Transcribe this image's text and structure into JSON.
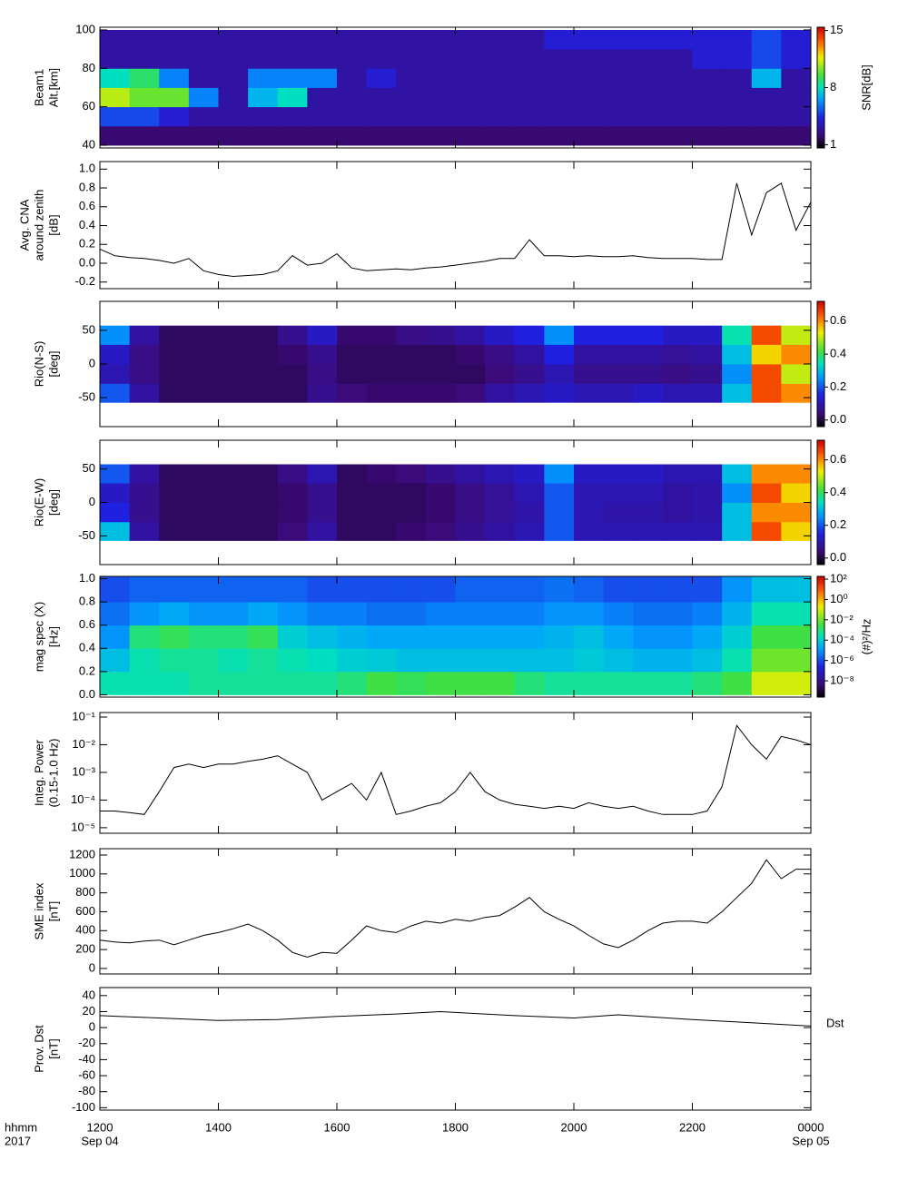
{
  "x_axis": {
    "xlim": [
      12,
      24
    ],
    "xticks": [
      {
        "value": 12,
        "label": "1200"
      },
      {
        "value": 14,
        "label": "1400"
      },
      {
        "value": 16,
        "label": "1600"
      },
      {
        "value": 18,
        "label": "1800"
      },
      {
        "value": 20,
        "label": "2000"
      },
      {
        "value": 22,
        "label": "2200"
      },
      {
        "value": 24,
        "label": "0000"
      }
    ],
    "label_lines": [
      "hhmm",
      "2017"
    ],
    "start_date": "Sep 04",
    "end_date": "Sep 05"
  },
  "chart_data": [
    {
      "type": "heatmap",
      "ylabel": [
        "Beam1",
        "Alt.[km]"
      ],
      "ylim": [
        38.6,
        101.4
      ],
      "yticks": [
        40,
        60,
        80,
        100
      ],
      "x_bins": [
        12,
        12.5,
        13,
        13.5,
        14,
        14.5,
        15,
        15.5,
        16,
        16.5,
        17,
        17.5,
        18,
        18.5,
        19,
        19.5,
        20,
        20.5,
        21,
        21.5,
        22,
        22.5,
        23,
        23.5,
        24
      ],
      "y_bins": [
        40,
        50,
        60,
        70,
        80,
        90,
        100
      ],
      "z": [
        [
          2,
          2,
          2,
          2,
          2,
          2,
          2,
          2,
          2,
          2,
          2,
          2,
          2,
          2,
          2,
          2,
          2,
          2,
          2,
          2,
          2,
          2,
          2,
          2
        ],
        [
          5,
          5,
          4,
          3,
          3,
          3,
          3,
          3,
          3,
          3,
          3,
          3,
          3,
          3,
          3,
          3,
          3,
          3,
          3,
          3,
          3,
          3,
          3,
          3
        ],
        [
          11,
          10,
          10,
          6,
          3,
          7,
          8,
          3,
          3,
          3,
          3,
          3,
          3,
          3,
          3,
          3,
          3,
          3,
          3,
          3,
          3,
          3,
          3,
          3
        ],
        [
          8,
          9,
          6,
          3,
          3,
          6,
          6,
          6,
          3,
          4,
          3,
          3,
          3,
          3,
          3,
          3,
          3,
          3,
          3,
          3,
          3,
          3,
          7,
          3
        ],
        [
          3,
          3,
          3,
          3,
          3,
          3,
          3,
          3,
          3,
          3,
          3,
          3,
          3,
          3,
          3,
          3,
          3,
          3,
          3,
          3,
          4,
          4,
          5,
          4
        ],
        [
          3,
          3,
          3,
          3,
          3,
          3,
          3,
          3,
          3,
          3,
          3,
          3,
          3,
          3,
          3,
          4,
          4,
          4,
          4,
          4,
          4,
          4,
          5,
          4
        ]
      ],
      "zlim": [
        0.6,
        15.4
      ],
      "zticks": [
        1,
        8,
        15
      ],
      "zlabel": "SNR[dB]"
    },
    {
      "type": "line",
      "ylabel": [
        "Avg. CNA",
        "around zenith",
        "[dB]"
      ],
      "ylim": [
        -0.27,
        1.08
      ],
      "yticks": [
        {
          "value": 1.0,
          "label": "1.0"
        },
        0.8,
        0.6,
        0.4,
        0.2,
        {
          "value": 0,
          "label": "0.0"
        },
        -0.2
      ],
      "color": "#000000",
      "x": [
        12,
        12.25,
        12.5,
        12.75,
        13,
        13.25,
        13.5,
        13.75,
        14,
        14.25,
        14.5,
        14.75,
        15,
        15.25,
        15.5,
        15.75,
        16,
        16.25,
        16.5,
        16.75,
        17,
        17.25,
        17.5,
        17.75,
        18,
        18.25,
        18.5,
        18.75,
        19,
        19.25,
        19.5,
        19.75,
        20,
        20.25,
        20.5,
        20.75,
        21,
        21.25,
        21.5,
        21.75,
        22,
        22.25,
        22.5,
        22.75,
        23,
        23.25,
        23.5,
        23.75,
        24
      ],
      "values": [
        0.15,
        0.08,
        0.06,
        0.05,
        0.03,
        0.0,
        0.05,
        -0.08,
        -0.12,
        -0.14,
        -0.13,
        -0.12,
        -0.08,
        0.08,
        -0.02,
        0.0,
        0.1,
        -0.05,
        -0.08,
        -0.07,
        -0.06,
        -0.07,
        -0.05,
        -0.04,
        -0.02,
        0.0,
        0.02,
        0.05,
        0.05,
        0.25,
        0.08,
        0.08,
        0.07,
        0.08,
        0.07,
        0.07,
        0.08,
        0.06,
        0.05,
        0.05,
        0.05,
        0.04,
        0.04,
        0.85,
        0.3,
        0.75,
        0.85,
        0.35,
        0.65
      ]
    },
    {
      "type": "heatmap",
      "ylabel": [
        "Rio(N-S)",
        "[deg]"
      ],
      "ylim": [
        -93,
        93
      ],
      "yticks": [
        50,
        0,
        -50
      ],
      "x_bins": [
        12,
        12.5,
        13,
        13.5,
        14,
        14.5,
        15,
        15.5,
        16,
        16.5,
        17,
        17.5,
        18,
        18.5,
        19,
        19.5,
        20,
        20.5,
        21,
        21.5,
        22,
        22.5,
        23,
        23.5,
        24
      ],
      "y_bins": [
        -57,
        -29,
        0,
        29,
        57
      ],
      "z": [
        [
          0.2,
          0.08,
          0.02,
          0.02,
          0.02,
          0.02,
          0.02,
          0.06,
          0.04,
          0.03,
          0.03,
          0.03,
          0.04,
          0.08,
          0.1,
          0.12,
          0.1,
          0.1,
          0.12,
          0.1,
          0.1,
          0.3,
          0.65,
          0.6
        ],
        [
          0.1,
          0.05,
          0.02,
          0.02,
          0.02,
          0.02,
          0.02,
          0.05,
          0.02,
          0.02,
          0.02,
          0.02,
          0.02,
          0.04,
          0.06,
          0.1,
          0.06,
          0.06,
          0.06,
          0.05,
          0.06,
          0.25,
          0.65,
          0.5
        ],
        [
          0.12,
          0.05,
          0.02,
          0.02,
          0.02,
          0.02,
          0.03,
          0.06,
          0.02,
          0.02,
          0.02,
          0.02,
          0.03,
          0.05,
          0.08,
          0.15,
          0.08,
          0.08,
          0.08,
          0.07,
          0.08,
          0.3,
          0.55,
          0.6
        ],
        [
          0.25,
          0.08,
          0.02,
          0.02,
          0.02,
          0.02,
          0.06,
          0.12,
          0.03,
          0.03,
          0.05,
          0.06,
          0.08,
          0.12,
          0.15,
          0.25,
          0.15,
          0.15,
          0.15,
          0.12,
          0.12,
          0.35,
          0.65,
          0.5
        ]
      ],
      "zlim": [
        -0.04,
        0.72
      ],
      "zticks": [
        {
          "value": 0,
          "label": "0.0"
        },
        0.2,
        0.4,
        0.6
      ]
    },
    {
      "type": "heatmap",
      "ylabel": [
        "Rio(E-W)",
        "[deg]"
      ],
      "ylim": [
        -93,
        93
      ],
      "yticks": [
        50,
        0,
        -50
      ],
      "x_bins": [
        12,
        12.5,
        13,
        13.5,
        14,
        14.5,
        15,
        15.5,
        16,
        16.5,
        17,
        17.5,
        18,
        18.5,
        19,
        19.5,
        20,
        20.5,
        21,
        21.5,
        22,
        22.5,
        23,
        23.5,
        24
      ],
      "y_bins": [
        -57,
        -29,
        0,
        29,
        57
      ],
      "z": [
        [
          0.3,
          0.08,
          0.02,
          0.02,
          0.02,
          0.02,
          0.04,
          0.08,
          0.02,
          0.02,
          0.03,
          0.04,
          0.06,
          0.08,
          0.1,
          0.2,
          0.1,
          0.1,
          0.1,
          0.1,
          0.1,
          0.3,
          0.65,
          0.55
        ],
        [
          0.15,
          0.06,
          0.02,
          0.02,
          0.02,
          0.02,
          0.03,
          0.06,
          0.02,
          0.02,
          0.02,
          0.03,
          0.05,
          0.07,
          0.09,
          0.2,
          0.1,
          0.09,
          0.09,
          0.08,
          0.09,
          0.3,
          0.6,
          0.6
        ],
        [
          0.12,
          0.06,
          0.02,
          0.02,
          0.02,
          0.02,
          0.03,
          0.06,
          0.02,
          0.02,
          0.02,
          0.03,
          0.05,
          0.07,
          0.1,
          0.2,
          0.1,
          0.1,
          0.1,
          0.08,
          0.09,
          0.25,
          0.65,
          0.55
        ],
        [
          0.2,
          0.08,
          0.02,
          0.02,
          0.02,
          0.02,
          0.05,
          0.1,
          0.02,
          0.03,
          0.04,
          0.06,
          0.08,
          0.1,
          0.12,
          0.25,
          0.12,
          0.12,
          0.12,
          0.1,
          0.1,
          0.3,
          0.6,
          0.6
        ]
      ],
      "zlim": [
        -0.04,
        0.72
      ],
      "zticks": [
        {
          "value": 0,
          "label": "0.0"
        },
        0.2,
        0.4,
        0.6
      ]
    },
    {
      "type": "heatmap",
      "ylabel": [
        "mag spec (X)",
        "[Hz]"
      ],
      "ylim": [
        -0.02,
        1.02
      ],
      "yticks": [
        {
          "value": 1.0,
          "label": "1.0"
        },
        0.8,
        0.6,
        0.4,
        0.2,
        {
          "value": 0,
          "label": "0.0"
        }
      ],
      "x_bins": [
        12,
        12.5,
        13,
        13.5,
        14,
        14.5,
        15,
        15.5,
        16,
        16.5,
        17,
        17.5,
        18,
        18.5,
        19,
        19.5,
        20,
        20.5,
        21,
        21.5,
        22,
        22.5,
        23,
        23.5,
        24
      ],
      "y_bins": [
        0,
        0.2,
        0.4,
        0.6,
        0.8,
        1.02
      ],
      "z": [
        [
          0.0003,
          0.0003,
          0.0003,
          0.0005,
          0.0005,
          0.0005,
          0.0005,
          0.0005,
          0.001,
          0.003,
          0.002,
          0.003,
          0.003,
          0.003,
          0.001,
          0.0005,
          0.0005,
          0.0005,
          0.0005,
          0.0005,
          0.001,
          0.003,
          0.1,
          0.1
        ],
        [
          5e-05,
          0.0003,
          0.0005,
          0.0005,
          0.0003,
          0.0005,
          0.0003,
          0.0002,
          0.0001,
          8e-05,
          5e-05,
          5e-05,
          5e-05,
          5e-05,
          5e-05,
          5e-05,
          8e-05,
          5e-05,
          3e-05,
          3e-05,
          5e-05,
          0.0003,
          0.01,
          0.01
        ],
        [
          1e-05,
          0.001,
          0.002,
          0.001,
          0.001,
          0.002,
          0.0001,
          5e-05,
          3e-05,
          2e-05,
          2e-05,
          2e-05,
          2e-05,
          2e-05,
          2e-05,
          3e-05,
          5e-05,
          2e-05,
          1e-05,
          1e-05,
          2e-05,
          0.0001,
          0.003,
          0.003
        ],
        [
          3e-06,
          1e-05,
          2e-05,
          1e-05,
          1e-05,
          2e-05,
          1e-05,
          5e-06,
          5e-06,
          3e-06,
          3e-06,
          5e-06,
          5e-06,
          5e-06,
          5e-06,
          1e-05,
          1e-05,
          5e-06,
          3e-06,
          3e-06,
          5e-06,
          3e-05,
          0.0003,
          0.0003
        ],
        [
          1e-06,
          2e-06,
          2e-06,
          2e-06,
          2e-06,
          2e-06,
          2e-06,
          1e-06,
          1e-06,
          1e-06,
          1e-06,
          1e-06,
          2e-06,
          2e-06,
          2e-06,
          3e-06,
          2e-06,
          1e-06,
          1e-06,
          1e-06,
          1e-06,
          1e-05,
          5e-05,
          5e-05
        ]
      ],
      "zlim": [
        2.5e-10,
        186
      ],
      "zlog": true,
      "zticks": [
        {
          "value": 100,
          "label": "10²"
        },
        {
          "value": 1,
          "label": "10⁰"
        },
        {
          "value": 0.01,
          "label": "10⁻²"
        },
        {
          "value": 0.0001,
          "label": "10⁻⁴"
        },
        {
          "value": 1e-06,
          "label": "10⁻⁶"
        },
        {
          "value": 1e-08,
          "label": "10⁻⁸"
        }
      ],
      "zlabel": "(#)²/Hz"
    },
    {
      "type": "line",
      "ylabel": [
        "Integ. Power",
        "(0.15-1.0 Hz)"
      ],
      "ylim": [
        6.3e-06,
        0.146
      ],
      "ylog": true,
      "color": "#000000",
      "yticks": [
        {
          "value": 0.1,
          "label": "10⁻¹"
        },
        {
          "value": 0.01,
          "label": "10⁻²"
        },
        {
          "value": 0.001,
          "label": "10⁻³"
        },
        {
          "value": 0.0001,
          "label": "10⁻⁴"
        },
        {
          "value": 1e-05,
          "label": "10⁻⁵"
        }
      ],
      "x": [
        12,
        12.25,
        12.5,
        12.75,
        13,
        13.25,
        13.5,
        13.75,
        14,
        14.25,
        14.5,
        14.75,
        15,
        15.25,
        15.5,
        15.75,
        16,
        16.25,
        16.5,
        16.75,
        17,
        17.25,
        17.5,
        17.75,
        18,
        18.25,
        18.5,
        18.75,
        19,
        19.25,
        19.5,
        19.75,
        20,
        20.25,
        20.5,
        20.75,
        21,
        21.25,
        21.5,
        21.75,
        22,
        22.25,
        22.5,
        22.75,
        23,
        23.25,
        23.5,
        23.75,
        24
      ],
      "values": [
        4e-05,
        4e-05,
        3.5e-05,
        3e-05,
        0.0002,
        0.0015,
        0.002,
        0.0015,
        0.002,
        0.002,
        0.0025,
        0.003,
        0.004,
        0.002,
        0.001,
        0.0001,
        0.0002,
        0.0004,
        0.0001,
        0.001,
        3e-05,
        4e-05,
        6e-05,
        8e-05,
        0.0002,
        0.001,
        0.0002,
        0.0001,
        7e-05,
        6e-05,
        5e-05,
        6e-05,
        5e-05,
        8e-05,
        6e-05,
        5e-05,
        6e-05,
        4e-05,
        3e-05,
        3e-05,
        3e-05,
        4e-05,
        0.0003,
        0.05,
        0.01,
        0.003,
        0.02,
        0.015,
        0.01
      ]
    },
    {
      "type": "line",
      "ylabel": [
        "SME index",
        "[nT]"
      ],
      "ylim": [
        -58,
        1267
      ],
      "yticks": [
        1200,
        1000,
        800,
        600,
        400,
        200,
        0
      ],
      "color": "#000000",
      "x": [
        12,
        12.25,
        12.5,
        12.75,
        13,
        13.25,
        13.5,
        13.75,
        14,
        14.25,
        14.5,
        14.75,
        15,
        15.25,
        15.5,
        15.75,
        16,
        16.25,
        16.5,
        16.75,
        17,
        17.25,
        17.5,
        17.75,
        18,
        18.25,
        18.5,
        18.75,
        19,
        19.25,
        19.5,
        19.75,
        20,
        20.25,
        20.5,
        20.75,
        21,
        21.25,
        21.5,
        21.75,
        22,
        22.25,
        22.5,
        22.75,
        23,
        23.25,
        23.5,
        23.75,
        24
      ],
      "values": [
        300,
        280,
        270,
        290,
        300,
        250,
        300,
        350,
        380,
        420,
        470,
        400,
        300,
        170,
        120,
        170,
        160,
        300,
        450,
        400,
        380,
        450,
        500,
        480,
        520,
        500,
        540,
        560,
        650,
        750,
        600,
        520,
        450,
        350,
        260,
        220,
        300,
        400,
        480,
        500,
        500,
        480,
        600,
        750,
        900,
        1150,
        950,
        1050,
        1050
      ]
    },
    {
      "type": "line",
      "ylabel": [
        "Prov. Dst",
        "[nT]"
      ],
      "ylim": [
        -103,
        50
      ],
      "yticks": [
        40,
        20,
        0,
        -20,
        -40,
        -60,
        -80,
        -100
      ],
      "color": "#000000",
      "x": [
        12,
        13,
        14,
        15,
        16,
        17,
        17.75,
        19,
        20,
        20.75,
        22,
        23,
        24
      ],
      "values": [
        15,
        12,
        9,
        10,
        14,
        17,
        20,
        15,
        12,
        16,
        10,
        6,
        2
      ],
      "annotation": "Dst"
    }
  ]
}
